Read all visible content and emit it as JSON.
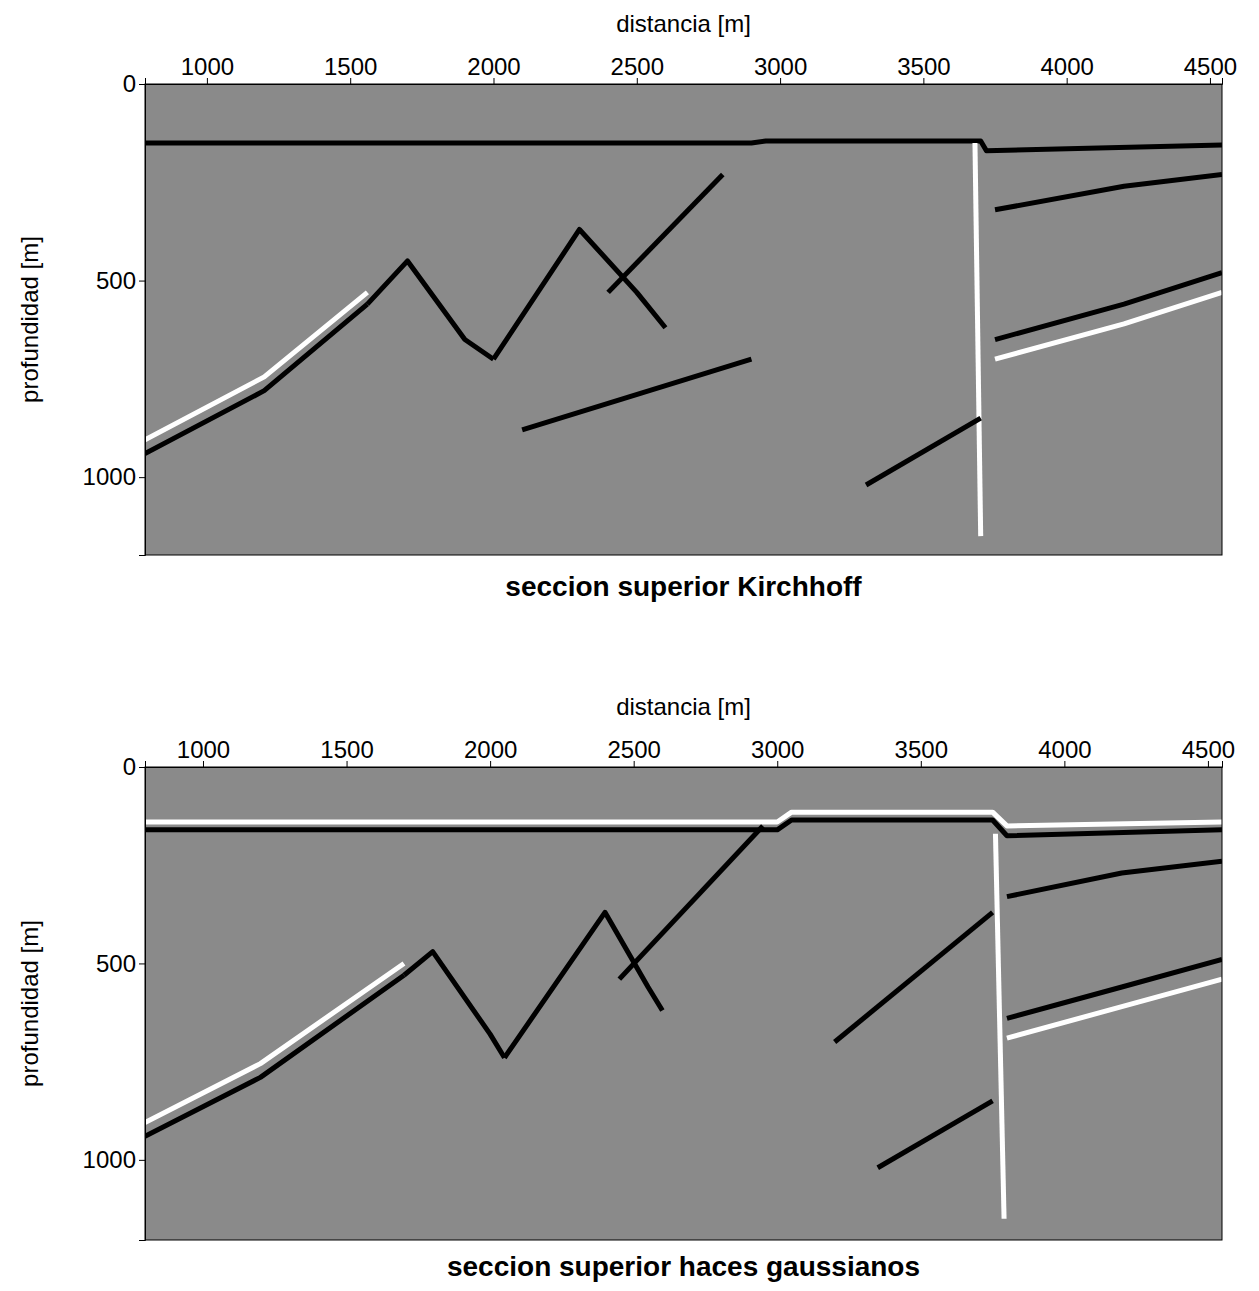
{
  "chart_data": [
    {
      "type": "line",
      "title": "seccion superior Kirchhoff",
      "x_label": "distancia [m]",
      "y_label": "profundidad [m]",
      "xlim": [
        784,
        4542
      ],
      "ylim": [
        0,
        1198
      ],
      "xticks": [
        1000,
        1500,
        2000,
        2500,
        3000,
        3500,
        4000,
        4500
      ],
      "yticks": [
        0,
        500,
        1000
      ],
      "series": [
        {
          "color": "#000000",
          "x": [
            784,
            2900,
            2950,
            3700,
            3720,
            4542
          ],
          "values": [
            150,
            150,
            145,
            145,
            170,
            155
          ]
        },
        {
          "color": "#000000",
          "x": [
            784,
            1200,
            1560
          ],
          "values": [
            940,
            780,
            560
          ]
        },
        {
          "color": "#ffffff",
          "x": [
            784,
            1200,
            1560
          ],
          "values": [
            905,
            745,
            530
          ]
        },
        {
          "color": "#000000",
          "x": [
            1560,
            1700,
            1900,
            2000
          ],
          "values": [
            560,
            450,
            650,
            700
          ]
        },
        {
          "color": "#000000",
          "x": [
            2000,
            2300,
            2500,
            2600
          ],
          "values": [
            700,
            370,
            530,
            620
          ]
        },
        {
          "color": "#000000",
          "x": [
            2400,
            2800
          ],
          "values": [
            530,
            230
          ]
        },
        {
          "color": "#ffffff",
          "x": [
            3680,
            3700
          ],
          "values": [
            150,
            1150
          ]
        },
        {
          "color": "#000000",
          "x": [
            3750,
            4200,
            4542
          ],
          "values": [
            650,
            560,
            480
          ]
        },
        {
          "color": "#ffffff",
          "x": [
            3750,
            4200,
            4542
          ],
          "values": [
            700,
            610,
            530
          ]
        },
        {
          "color": "#000000",
          "x": [
            3750,
            4200,
            4542
          ],
          "values": [
            320,
            260,
            230
          ]
        },
        {
          "color": "#000000",
          "x": [
            3300,
            3700
          ],
          "values": [
            1020,
            850
          ]
        },
        {
          "color": "#000000",
          "x": [
            2100,
            2900
          ],
          "values": [
            880,
            700
          ]
        }
      ]
    },
    {
      "type": "line",
      "title": "seccion superior haces gaussianos",
      "x_label": "distancia [m]",
      "y_label": "profundidad [m]",
      "xlim": [
        798,
        4549
      ],
      "ylim": [
        0,
        1204
      ],
      "xticks": [
        1000,
        1500,
        2000,
        2500,
        3000,
        3500,
        4000,
        4500
      ],
      "yticks": [
        0,
        500,
        1000
      ],
      "series": [
        {
          "color": "#000000",
          "x": [
            798,
            3000,
            3050,
            3750,
            3800,
            4549
          ],
          "values": [
            160,
            160,
            135,
            135,
            175,
            160
          ]
        },
        {
          "color": "#ffffff",
          "x": [
            798,
            3000,
            3050,
            3750,
            3800,
            4549
          ],
          "values": [
            140,
            140,
            115,
            115,
            150,
            140
          ]
        },
        {
          "color": "#000000",
          "x": [
            798,
            1200,
            1700
          ],
          "values": [
            940,
            790,
            530
          ]
        },
        {
          "color": "#ffffff",
          "x": [
            798,
            1200,
            1700
          ],
          "values": [
            905,
            755,
            500
          ]
        },
        {
          "color": "#000000",
          "x": [
            1700,
            1800,
            2000,
            2050
          ],
          "values": [
            530,
            470,
            680,
            740
          ]
        },
        {
          "color": "#000000",
          "x": [
            2050,
            2400,
            2550,
            2600
          ],
          "values": [
            740,
            370,
            560,
            620
          ]
        },
        {
          "color": "#000000",
          "x": [
            2450,
            2950
          ],
          "values": [
            540,
            150
          ]
        },
        {
          "color": "#ffffff",
          "x": [
            3760,
            3790
          ],
          "values": [
            170,
            1150
          ]
        },
        {
          "color": "#000000",
          "x": [
            3800,
            4200,
            4549
          ],
          "values": [
            640,
            560,
            490
          ]
        },
        {
          "color": "#ffffff",
          "x": [
            3800,
            4200,
            4549
          ],
          "values": [
            690,
            610,
            540
          ]
        },
        {
          "color": "#000000",
          "x": [
            3800,
            4200,
            4549
          ],
          "values": [
            330,
            270,
            240
          ]
        },
        {
          "color": "#000000",
          "x": [
            3350,
            3750
          ],
          "values": [
            1020,
            850
          ]
        },
        {
          "color": "#000000",
          "x": [
            3200,
            3750
          ],
          "values": [
            700,
            370
          ]
        }
      ]
    }
  ]
}
